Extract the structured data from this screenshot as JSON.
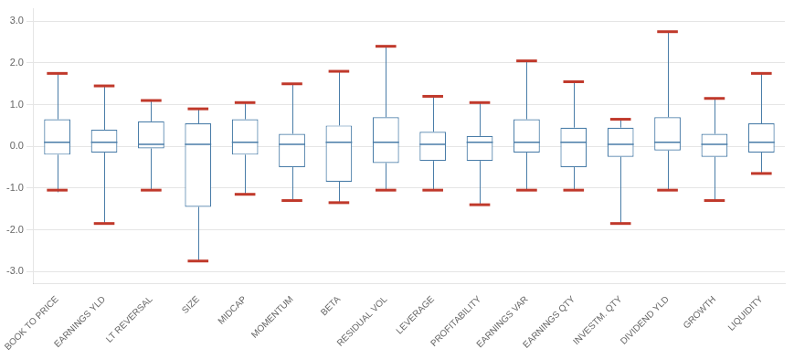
{
  "chart_data": {
    "type": "box",
    "categories": [
      "BOOK TO PRICE",
      "EARNINGS YLD",
      "LT REVERSAL",
      "SIZE",
      "MIDCAP",
      "MOMENTUM",
      "BETA",
      "RESIDUAL VOL",
      "LEVERAGE",
      "PROFITABILITY",
      "EARNINGS VAR",
      "EARNINGS QTY",
      "INVESTM. QTY",
      "DIVIDEND YLD",
      "GROWTH",
      "LIQUIDITY"
    ],
    "boxes": [
      {
        "whisker_lo": -1.1,
        "q1": -0.2,
        "median": 0.1,
        "q3": 0.65,
        "whisker_hi": 1.75,
        "marker_lo": -1.05,
        "marker_hi": 1.75
      },
      {
        "whisker_lo": -1.85,
        "q1": -0.15,
        "median": 0.1,
        "q3": 0.4,
        "whisker_hi": 1.45,
        "marker_lo": -1.85,
        "marker_hi": 1.45
      },
      {
        "whisker_lo": -1.05,
        "q1": -0.05,
        "median": 0.05,
        "q3": 0.6,
        "whisker_hi": 1.1,
        "marker_lo": -1.05,
        "marker_hi": 1.1
      },
      {
        "whisker_lo": -2.75,
        "q1": -1.45,
        "median": 0.05,
        "q3": 0.55,
        "whisker_hi": 0.9,
        "marker_lo": -2.75,
        "marker_hi": 0.9
      },
      {
        "whisker_lo": -1.15,
        "q1": -0.2,
        "median": 0.1,
        "q3": 0.65,
        "whisker_hi": 1.05,
        "marker_lo": -1.15,
        "marker_hi": 1.05
      },
      {
        "whisker_lo": -1.3,
        "q1": -0.5,
        "median": 0.05,
        "q3": 0.3,
        "whisker_hi": 1.5,
        "marker_lo": -1.3,
        "marker_hi": 1.5
      },
      {
        "whisker_lo": -1.35,
        "q1": -0.85,
        "median": 0.1,
        "q3": 0.5,
        "whisker_hi": 1.8,
        "marker_lo": -1.35,
        "marker_hi": 1.8
      },
      {
        "whisker_lo": -1.05,
        "q1": -0.4,
        "median": 0.1,
        "q3": 0.7,
        "whisker_hi": 2.4,
        "marker_lo": -1.05,
        "marker_hi": 2.4
      },
      {
        "whisker_lo": -1.05,
        "q1": -0.35,
        "median": 0.05,
        "q3": 0.35,
        "whisker_hi": 1.2,
        "marker_lo": -1.05,
        "marker_hi": 1.2
      },
      {
        "whisker_lo": -1.4,
        "q1": -0.35,
        "median": 0.1,
        "q3": 0.25,
        "whisker_hi": 1.05,
        "marker_lo": -1.4,
        "marker_hi": 1.05
      },
      {
        "whisker_lo": -1.05,
        "q1": -0.15,
        "median": 0.1,
        "q3": 0.65,
        "whisker_hi": 2.05,
        "marker_lo": -1.05,
        "marker_hi": 2.05
      },
      {
        "whisker_lo": -1.05,
        "q1": -0.5,
        "median": 0.1,
        "q3": 0.45,
        "whisker_hi": 1.55,
        "marker_lo": -1.05,
        "marker_hi": 1.55
      },
      {
        "whisker_lo": -1.85,
        "q1": -0.25,
        "median": 0.05,
        "q3": 0.45,
        "whisker_hi": 0.65,
        "marker_lo": -1.85,
        "marker_hi": 0.65
      },
      {
        "whisker_lo": -1.05,
        "q1": -0.1,
        "median": 0.1,
        "q3": 0.7,
        "whisker_hi": 2.75,
        "marker_lo": -1.05,
        "marker_hi": 2.75
      },
      {
        "whisker_lo": -1.3,
        "q1": -0.25,
        "median": 0.05,
        "q3": 0.3,
        "whisker_hi": 1.15,
        "marker_lo": -1.3,
        "marker_hi": 1.15
      },
      {
        "whisker_lo": -0.65,
        "q1": -0.15,
        "median": 0.1,
        "q3": 0.55,
        "whisker_hi": 1.75,
        "marker_lo": -0.65,
        "marker_hi": 1.75
      }
    ],
    "color": {
      "box": "#4a7da8",
      "face": "#ffffff",
      "marker": "#c0392b"
    },
    "ylim": [
      -3.3,
      3.3
    ],
    "yticks": [
      {
        "value": -3,
        "label": "-3.0"
      },
      {
        "value": -2,
        "label": "-2.0"
      },
      {
        "value": -1,
        "label": "-1.0"
      },
      {
        "value": 0,
        "label": "0.0"
      },
      {
        "value": 1,
        "label": "1.0"
      },
      {
        "value": 2,
        "label": "2.0"
      },
      {
        "value": 3,
        "label": "3.0"
      }
    ],
    "grid": true
  }
}
